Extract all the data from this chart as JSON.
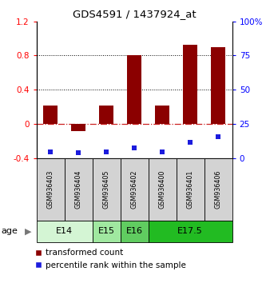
{
  "title": "GDS4591 / 1437924_at",
  "samples": [
    "GSM936403",
    "GSM936404",
    "GSM936405",
    "GSM936402",
    "GSM936400",
    "GSM936401",
    "GSM936406"
  ],
  "transformed_count": [
    0.22,
    -0.08,
    0.22,
    0.8,
    0.22,
    0.93,
    0.9
  ],
  "percentile_rank_pct": [
    5,
    4,
    5,
    8,
    5,
    12,
    16
  ],
  "bar_color": "#8B0000",
  "dot_color": "#1C1CDD",
  "ylim_left": [
    -0.4,
    1.2
  ],
  "yticks_left": [
    -0.4,
    0.0,
    0.4,
    0.8,
    1.2
  ],
  "ytick_labels_left": [
    "-0.4",
    "0",
    "0.4",
    "0.8",
    "1.2"
  ],
  "yticks_right_pct": [
    0,
    25,
    50,
    75,
    100
  ],
  "ytick_labels_right": [
    "0",
    "25",
    "50",
    "75",
    "100%"
  ],
  "hline_zero_color": "#CC2222",
  "hline_dotted_vals": [
    0.4,
    0.8
  ],
  "age_groups": [
    {
      "label": "E14",
      "start": 0,
      "end": 2,
      "color": "#d4f5d4"
    },
    {
      "label": "E15",
      "start": 2,
      "end": 3,
      "color": "#a0e8a0"
    },
    {
      "label": "E16",
      "start": 3,
      "end": 4,
      "color": "#60cc60"
    },
    {
      "label": "E17.5",
      "start": 4,
      "end": 7,
      "color": "#22bb22"
    }
  ],
  "legend_bar_label": "transformed count",
  "legend_dot_label": "percentile rank within the sample",
  "age_label": "age",
  "sample_bg_color": "#d3d3d3",
  "bar_width": 0.5,
  "figure_width": 3.38,
  "figure_height": 3.54,
  "dpi": 100
}
